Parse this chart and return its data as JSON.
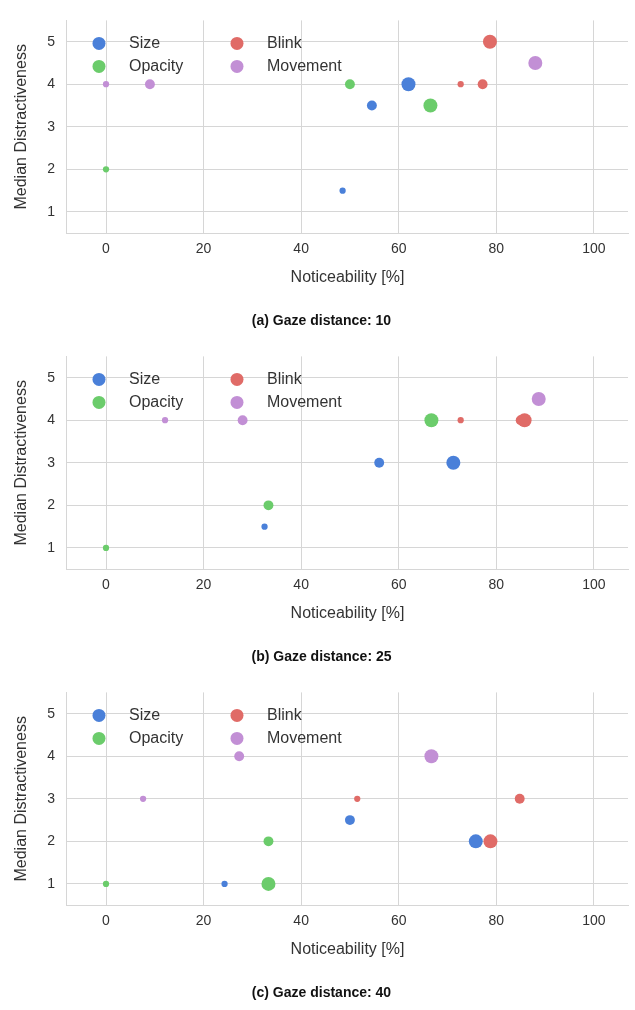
{
  "chart_data": [
    {
      "type": "bubble",
      "title": "(a) Gaze distance: 10",
      "xlabel": "Noticeability [%]",
      "ylabel": "Median Distractiveness",
      "xlim": [
        -8,
        107
      ],
      "ylim": [
        0.5,
        5.5
      ],
      "xticks": [
        0,
        20,
        40,
        60,
        80,
        100
      ],
      "yticks": [
        1,
        2,
        3,
        4,
        5
      ],
      "grid": true,
      "legend": "top left",
      "series": [
        {
          "name": "Size",
          "color": "#4a80d9",
          "x": [
            48.5,
            54.5,
            62
          ],
          "values": [
            1.5,
            3.5,
            4
          ],
          "sizes": [
            0.2,
            0.5,
            1
          ]
        },
        {
          "name": "Opacity",
          "color": "#6bcc6b",
          "x": [
            0,
            50,
            66.5
          ],
          "values": [
            2,
            4,
            3.5
          ],
          "sizes": [
            0.2,
            0.5,
            1
          ]
        },
        {
          "name": "Blink",
          "color": "#e06b67",
          "x": [
            72.7,
            77.2,
            78.7
          ],
          "values": [
            4,
            4,
            5
          ],
          "sizes": [
            0.2,
            0.5,
            1
          ]
        },
        {
          "name": "Movement",
          "color": "#c28fd5",
          "x": [
            0,
            9,
            88
          ],
          "values": [
            4,
            4,
            4.5
          ],
          "sizes": [
            0.2,
            0.5,
            1
          ]
        }
      ]
    },
    {
      "type": "bubble",
      "title": "(b) Gaze distance: 25",
      "xlabel": "Noticeability [%]",
      "ylabel": "Median Distractiveness",
      "xlim": [
        -8,
        107
      ],
      "ylim": [
        0.5,
        5.5
      ],
      "xticks": [
        0,
        20,
        40,
        60,
        80,
        100
      ],
      "yticks": [
        1,
        2,
        3,
        4,
        5
      ],
      "grid": true,
      "legend": "top left",
      "series": [
        {
          "name": "Size",
          "color": "#4a80d9",
          "x": [
            32.5,
            56,
            71.2
          ],
          "values": [
            1.5,
            3,
            3
          ],
          "sizes": [
            0.2,
            0.5,
            1
          ]
        },
        {
          "name": "Opacity",
          "color": "#6bcc6b",
          "x": [
            0,
            33.3,
            66.7
          ],
          "values": [
            1,
            2,
            4
          ],
          "sizes": [
            0.2,
            0.5,
            1
          ]
        },
        {
          "name": "Blink",
          "color": "#e06b67",
          "x": [
            72.7,
            85,
            85.8
          ],
          "values": [
            4,
            4,
            4
          ],
          "sizes": [
            0.2,
            0.5,
            1
          ]
        },
        {
          "name": "Movement",
          "color": "#c28fd5",
          "x": [
            12.1,
            28,
            88.7
          ],
          "values": [
            4,
            4,
            4.5
          ],
          "sizes": [
            0.2,
            0.5,
            1
          ]
        }
      ]
    },
    {
      "type": "bubble",
      "title": "(c) Gaze distance: 40",
      "xlabel": "Noticeability [%]",
      "ylabel": "Median Distractiveness",
      "xlim": [
        -8,
        107
      ],
      "ylim": [
        0.5,
        5.5
      ],
      "xticks": [
        0,
        20,
        40,
        60,
        80,
        100
      ],
      "yticks": [
        1,
        2,
        3,
        4,
        5
      ],
      "grid": true,
      "legend": "top left",
      "series": [
        {
          "name": "Size",
          "color": "#4a80d9",
          "x": [
            24.3,
            50,
            75.8
          ],
          "values": [
            1,
            2.5,
            2
          ],
          "sizes": [
            0.2,
            0.5,
            1
          ]
        },
        {
          "name": "Opacity",
          "color": "#6bcc6b",
          "x": [
            0,
            33.3,
            33.3
          ],
          "values": [
            1,
            2,
            1
          ],
          "sizes": [
            0.2,
            0.5,
            1
          ]
        },
        {
          "name": "Blink",
          "color": "#e06b67",
          "x": [
            51.5,
            84.8,
            78.8
          ],
          "values": [
            3,
            3,
            2
          ],
          "sizes": [
            0.2,
            0.5,
            1
          ]
        },
        {
          "name": "Movement",
          "color": "#c28fd5",
          "x": [
            7.6,
            27.3,
            66.7
          ],
          "values": [
            3,
            4,
            4
          ],
          "sizes": [
            0.2,
            0.5,
            1
          ]
        }
      ]
    }
  ]
}
